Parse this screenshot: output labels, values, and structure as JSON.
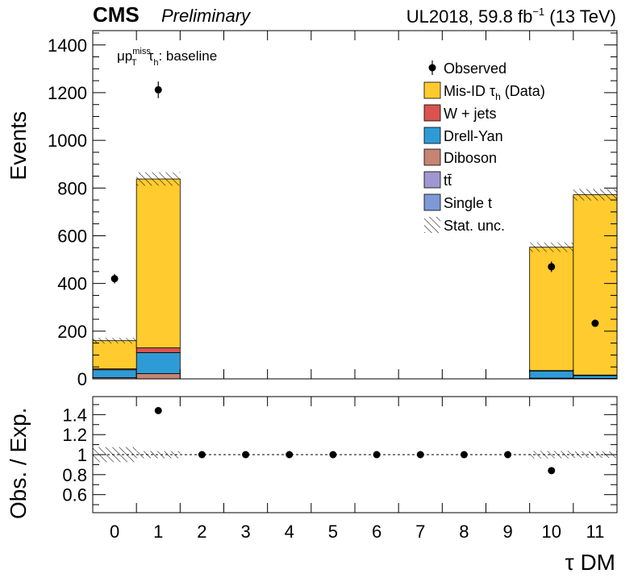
{
  "header": {
    "experiment": "CMS",
    "tag": "Preliminary",
    "lumi": "UL2018, 59.8 fb",
    "lumi_sup": "−1",
    "energy": " (13 TeV)"
  },
  "annotation": {
    "mu": "μp",
    "miss": "miss",
    "T": "T",
    "tau": "τ",
    "h": "h",
    "rest": ": baseline"
  },
  "legend": {
    "observed": "Observed",
    "misid": "Mis-ID  τ",
    "misid_sub": "h",
    "misid_rest": " (Data)",
    "wjets": "W + jets",
    "dy": "Drell-Yan",
    "diboson": "Diboson",
    "ttbar": "tt̄",
    "singlet": "Single t",
    "stat": "Stat. unc."
  },
  "colors": {
    "misid": "#ffcb2e",
    "wjets": "#d9534f",
    "dy": "#2f9bd6",
    "diboson": "#c68474",
    "ttbar": "#9f98d0",
    "singlet": "#7b9ad6"
  },
  "chart_data": [
    {
      "type": "bar",
      "stacked": true,
      "xlabel": "",
      "ylabel": "Events",
      "ylim": [
        0,
        1460
      ],
      "yticks": [
        0,
        200,
        400,
        600,
        800,
        1000,
        1200,
        1400
      ],
      "categories": [
        "0",
        "1",
        "2",
        "3",
        "4",
        "5",
        "6",
        "7",
        "8",
        "9",
        "10",
        "11"
      ],
      "series": [
        {
          "name": "Diboson",
          "color": "#c68474",
          "values": [
            5,
            22,
            0,
            0,
            0,
            0,
            0,
            0,
            0,
            0,
            3,
            2
          ]
        },
        {
          "name": "Drell-Yan",
          "color": "#2f9bd6",
          "values": [
            33,
            88,
            0,
            0,
            0,
            0,
            0,
            0,
            0,
            0,
            30,
            12
          ]
        },
        {
          "name": "W + jets",
          "color": "#d9534f",
          "values": [
            4,
            20,
            0,
            0,
            0,
            0,
            0,
            0,
            0,
            0,
            2,
            2
          ]
        },
        {
          "name": "Mis-ID τh (Data)",
          "color": "#ffcb2e",
          "values": [
            118,
            708,
            0,
            0,
            0,
            0,
            0,
            0,
            0,
            0,
            517,
            756
          ]
        }
      ],
      "stat_unc": [
        12,
        28,
        0,
        0,
        0,
        0,
        0,
        0,
        0,
        0,
        20,
        24
      ],
      "observed": [
        {
          "x": "0",
          "y": 420,
          "err": 20
        },
        {
          "x": "1",
          "y": 1212,
          "err": 35
        },
        {
          "x": "10",
          "y": 470,
          "err": 22
        },
        {
          "x": "11",
          "y": 233,
          "err": 15
        }
      ]
    },
    {
      "type": "scatter",
      "xlabel": "τ DM",
      "ylabel": "Obs. / Exp.",
      "ylim": [
        0.42,
        1.58
      ],
      "yticks": [
        0.6,
        0.8,
        1,
        1.2,
        1.4
      ],
      "ytick_labels": [
        "0.6",
        "0.8",
        "1",
        "1.2",
        "1.4"
      ],
      "categories": [
        "0",
        "1",
        "2",
        "3",
        "4",
        "5",
        "6",
        "7",
        "8",
        "9",
        "10",
        "11"
      ],
      "ratio": [
        null,
        1.44,
        1,
        1,
        1,
        1,
        1,
        1,
        1,
        1,
        0.84,
        null
      ],
      "ratio_err": [
        null,
        0.03,
        0,
        0,
        0,
        0,
        0,
        0,
        0,
        0,
        0.03,
        null
      ],
      "unc_band": [
        0.075,
        0.035,
        0,
        0,
        0,
        0,
        0,
        0,
        0,
        0,
        0.037,
        0.032
      ]
    }
  ]
}
